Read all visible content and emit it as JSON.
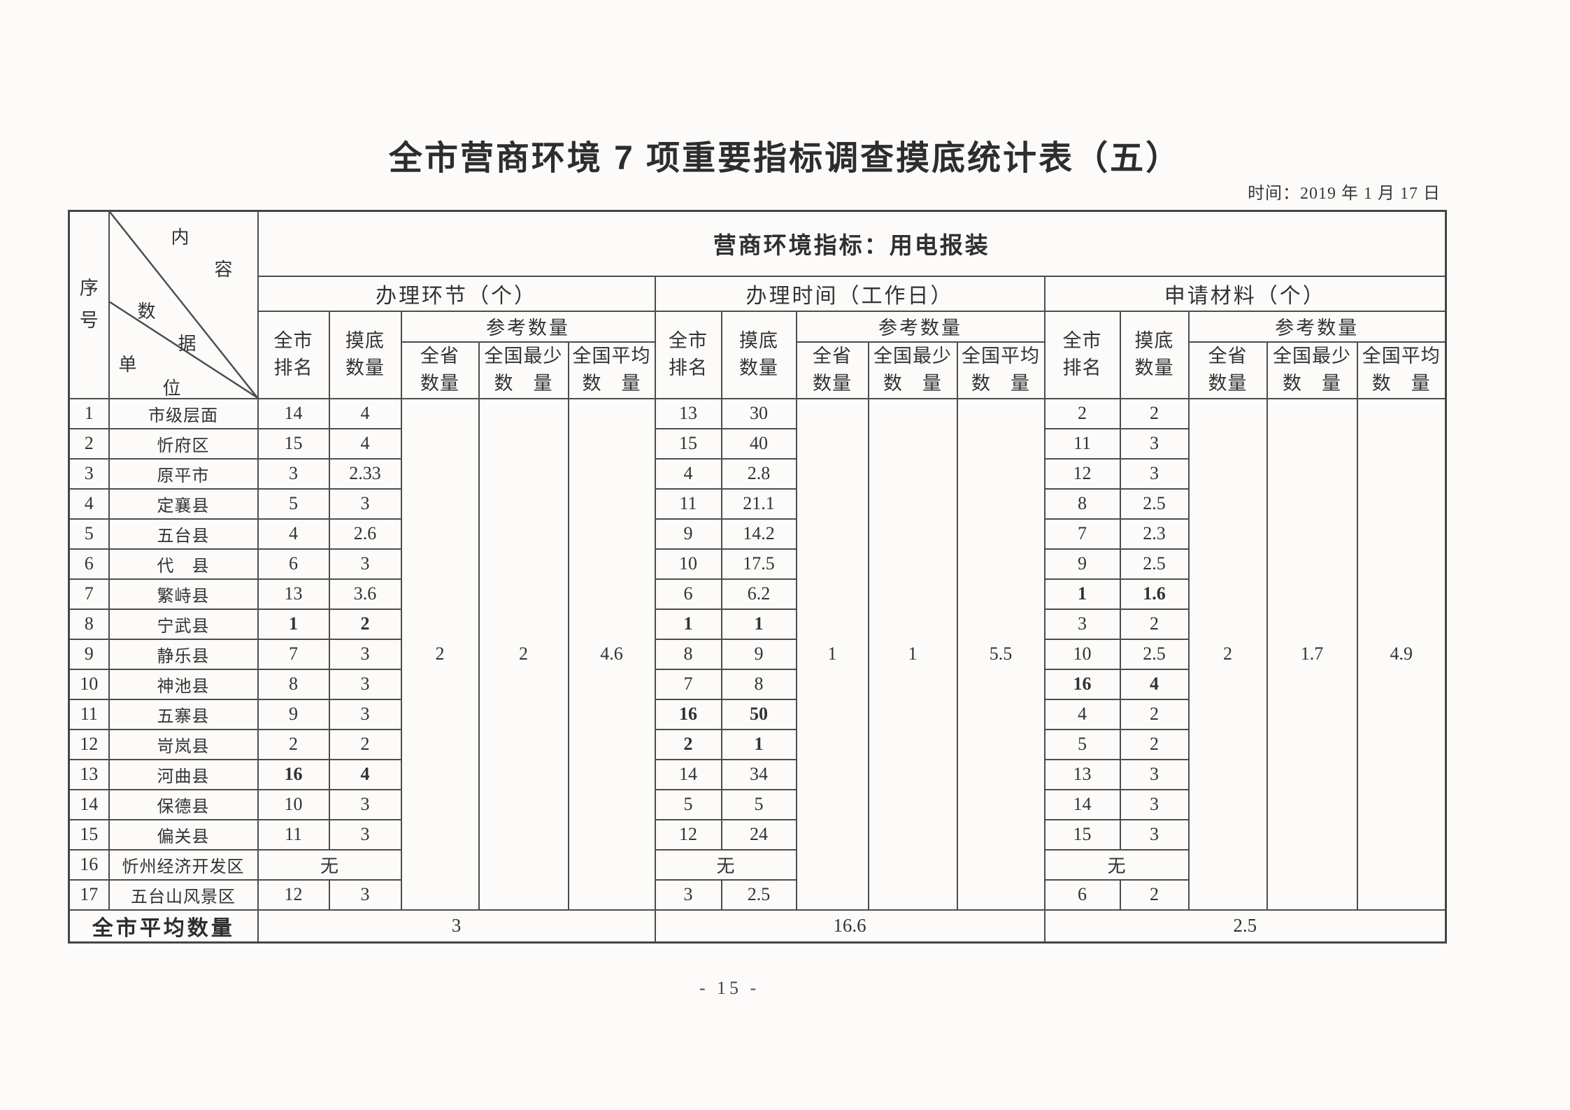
{
  "page": {
    "title": "全市营商环境 7 项重要指标调查摸底统计表（五）",
    "timestamp": "时间：2019 年 1 月 17 日",
    "page_number": "- 15 -"
  },
  "table": {
    "indicator_header": "营商环境指标：用电报装",
    "corner": {
      "row_label": "序号",
      "diag_labels": [
        [
          "内",
          "容"
        ],
        [
          "数",
          "据"
        ],
        [
          "单",
          "位"
        ]
      ]
    },
    "col_headers": {
      "rank": [
        "全市",
        "排名"
      ],
      "survey": [
        "摸底",
        "数量"
      ],
      "reference": "参考数量",
      "province": [
        "全省",
        "数量"
      ],
      "nat_min": [
        "全国最少",
        "数　量"
      ],
      "nat_avg": [
        "全国平均",
        "数　量"
      ]
    },
    "sections": [
      {
        "title": "办理环节（个）",
        "reference": [
          "2",
          "2",
          "4.6"
        ],
        "average": "3"
      },
      {
        "title": "办理时间（工作日）",
        "reference": [
          "1",
          "1",
          "5.5"
        ],
        "average": "16.6"
      },
      {
        "title": "申请材料（个）",
        "reference": [
          "2",
          "1.7",
          "4.9"
        ],
        "average": "2.5"
      }
    ],
    "average_label": "全市平均数量",
    "rows": [
      {
        "seq": "1",
        "name": "市级层面",
        "values": [
          "14",
          "4",
          "13",
          "30",
          "2",
          "2"
        ],
        "bold": []
      },
      {
        "seq": "2",
        "name": "忻府区",
        "values": [
          "15",
          "4",
          "15",
          "40",
          "11",
          "3"
        ],
        "bold": []
      },
      {
        "seq": "3",
        "name": "原平市",
        "values": [
          "3",
          "2.33",
          "4",
          "2.8",
          "12",
          "3"
        ],
        "bold": []
      },
      {
        "seq": "4",
        "name": "定襄县",
        "values": [
          "5",
          "3",
          "11",
          "21.1",
          "8",
          "2.5"
        ],
        "bold": []
      },
      {
        "seq": "5",
        "name": "五台县",
        "values": [
          "4",
          "2.6",
          "9",
          "14.2",
          "7",
          "2.3"
        ],
        "bold": []
      },
      {
        "seq": "6",
        "name": "代　县",
        "values": [
          "6",
          "3",
          "10",
          "17.5",
          "9",
          "2.5"
        ],
        "bold": []
      },
      {
        "seq": "7",
        "name": "繁峙县",
        "values": [
          "13",
          "3.6",
          "6",
          "6.2",
          "1",
          "1.6"
        ],
        "bold": [
          4,
          5
        ]
      },
      {
        "seq": "8",
        "name": "宁武县",
        "values": [
          "1",
          "2",
          "1",
          "1",
          "3",
          "2"
        ],
        "bold": [
          0,
          1,
          2,
          3
        ]
      },
      {
        "seq": "9",
        "name": "静乐县",
        "values": [
          "7",
          "3",
          "8",
          "9",
          "10",
          "2.5"
        ],
        "bold": []
      },
      {
        "seq": "10",
        "name": "神池县",
        "values": [
          "8",
          "3",
          "7",
          "8",
          "16",
          "4"
        ],
        "bold": [
          4,
          5
        ]
      },
      {
        "seq": "11",
        "name": "五寨县",
        "values": [
          "9",
          "3",
          "16",
          "50",
          "4",
          "2"
        ],
        "bold": [
          2,
          3
        ]
      },
      {
        "seq": "12",
        "name": "岢岚县",
        "values": [
          "2",
          "2",
          "2",
          "1",
          "5",
          "2"
        ],
        "bold": [
          2,
          3
        ]
      },
      {
        "seq": "13",
        "name": "河曲县",
        "values": [
          "16",
          "4",
          "14",
          "34",
          "13",
          "3"
        ],
        "bold": [
          0,
          1
        ]
      },
      {
        "seq": "14",
        "name": "保德县",
        "values": [
          "10",
          "3",
          "5",
          "5",
          "14",
          "3"
        ],
        "bold": []
      },
      {
        "seq": "15",
        "name": "偏关县",
        "values": [
          "11",
          "3",
          "12",
          "24",
          "15",
          "3"
        ],
        "bold": []
      },
      {
        "seq": "16",
        "name": "忻州经济开发区",
        "merged": "无"
      },
      {
        "seq": "17",
        "name": "五台山风景区",
        "values": [
          "12",
          "3",
          "3",
          "2.5",
          "6",
          "2"
        ],
        "bold": []
      }
    ]
  }
}
